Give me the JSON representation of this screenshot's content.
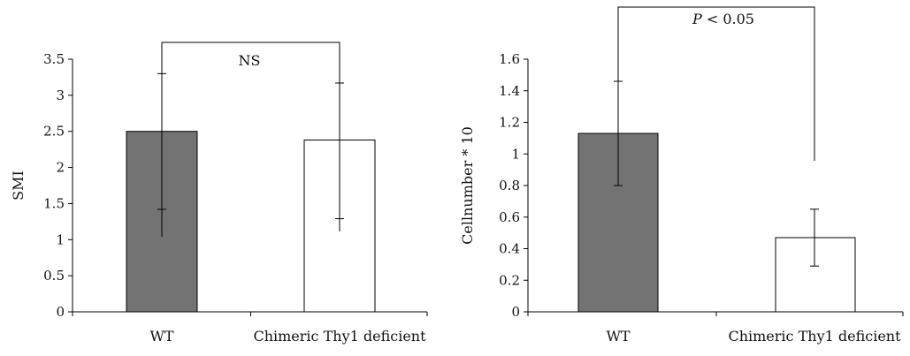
{
  "chart_data": [
    {
      "type": "bar",
      "categories": [
        "WT",
        "Chimeric Thy1 deficient"
      ],
      "values": [
        2.5,
        2.38
      ],
      "error_low": [
        1.42,
        1.29
      ],
      "error_high": [
        3.3,
        3.17
      ],
      "bar_colors": [
        "#737373",
        "#ffffff"
      ],
      "ylabel": "SMI",
      "xlabel": "",
      "ylim": [
        0,
        3.5
      ],
      "yticks": [
        0,
        0.5,
        1,
        1.5,
        2,
        2.5,
        3,
        3.5
      ],
      "ytick_labels": [
        "0",
        "0.5",
        "1",
        "1.5",
        "2",
        "2.5",
        "3",
        "3.5"
      ],
      "grid": false,
      "annotation": {
        "label": "NS",
        "between": [
          0,
          1
        ]
      }
    },
    {
      "type": "bar",
      "categories": [
        "WT",
        "Chimeric Thy1 deficient"
      ],
      "values": [
        1.13,
        0.47
      ],
      "error_low": [
        0.8,
        0.29
      ],
      "error_high": [
        1.46,
        0.65
      ],
      "bar_colors": [
        "#737373",
        "#ffffff"
      ],
      "ylabel": "Cellnumber * 10",
      "xlabel": "",
      "ylim": [
        0,
        1.6
      ],
      "yticks": [
        0,
        0.2,
        0.4,
        0.6,
        0.8,
        1,
        1.2,
        1.4,
        1.6
      ],
      "ytick_labels": [
        "0",
        "0.2",
        "0.4",
        "0.6",
        "0.8",
        "1",
        "1.2",
        "1.4",
        "1.6"
      ],
      "grid": false,
      "annotation": {
        "label_italic": "P",
        "label_rest": " < 0.05",
        "between": [
          0,
          1
        ]
      }
    }
  ]
}
